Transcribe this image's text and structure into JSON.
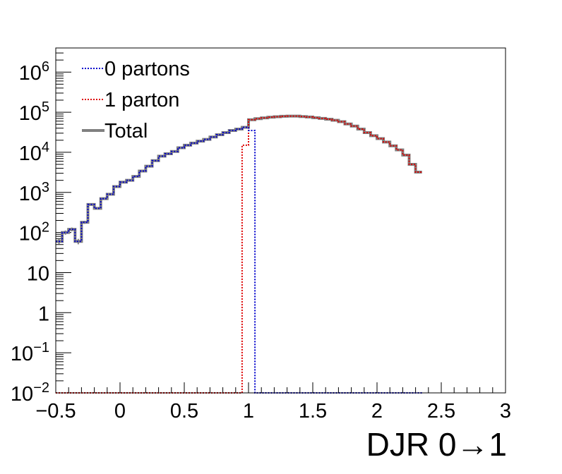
{
  "chart_data": {
    "type": "line",
    "xlabel": "DJR 0→1",
    "ylabel": "",
    "xlim": [
      -0.5,
      3.0
    ],
    "ylim": [
      0.01,
      4000000
    ],
    "log_y": true,
    "grid": false,
    "legend_position": "top-left",
    "x_tick_labels": [
      "−0.5",
      "0",
      "0.5",
      "1",
      "1.5",
      "2",
      "2.5",
      "3"
    ],
    "x_tick_values": [
      -0.5,
      0,
      0.5,
      1,
      1.5,
      2,
      2.5,
      3
    ],
    "y_tick_labels": [
      {
        "value": 0.01,
        "base": "10",
        "exp": "−2"
      },
      {
        "value": 0.1,
        "base": "10",
        "exp": "−1"
      },
      {
        "value": 1,
        "base": "1",
        "exp": ""
      },
      {
        "value": 10,
        "base": "10",
        "exp": ""
      },
      {
        "value": 100,
        "base": "10",
        "exp": "2"
      },
      {
        "value": 1000,
        "base": "10",
        "exp": "3"
      },
      {
        "value": 10000,
        "base": "10",
        "exp": "4"
      },
      {
        "value": 100000,
        "base": "10",
        "exp": "5"
      },
      {
        "value": 1000000,
        "base": "10",
        "exp": "6"
      }
    ],
    "bin_edges": [
      -0.5,
      -0.45,
      -0.4,
      -0.35,
      -0.3,
      -0.25,
      -0.2,
      -0.15,
      -0.1,
      -0.05,
      0.0,
      0.05,
      0.1,
      0.15,
      0.2,
      0.25,
      0.3,
      0.35,
      0.4,
      0.45,
      0.5,
      0.55,
      0.6,
      0.65,
      0.7,
      0.75,
      0.8,
      0.85,
      0.9,
      0.95,
      1.0,
      1.05,
      1.1,
      1.15,
      1.2,
      1.25,
      1.3,
      1.35,
      1.4,
      1.45,
      1.5,
      1.55,
      1.6,
      1.65,
      1.7,
      1.75,
      1.8,
      1.85,
      1.9,
      1.95,
      2.0,
      2.05,
      2.1,
      2.15,
      2.2,
      2.25,
      2.3,
      2.35,
      2.4,
      2.45,
      2.5,
      2.55,
      2.6,
      2.65,
      2.7,
      2.75,
      2.8,
      2.85,
      2.9,
      2.95,
      3.0
    ],
    "series": [
      {
        "name": "Total",
        "color": "#808080",
        "style": "solid",
        "values": [
          60,
          100,
          120,
          60,
          180,
          500,
          400,
          700,
          900,
          1400,
          1800,
          2000,
          2500,
          3400,
          4500,
          6200,
          8000,
          9200,
          10500,
          13000,
          15000,
          17000,
          19000,
          21000,
          24000,
          27500,
          31000,
          35000,
          38000,
          42000,
          65000,
          69000,
          72000,
          75000,
          77000,
          79000,
          80000,
          80000,
          78000,
          76000,
          73000,
          70000,
          67000,
          63000,
          58000,
          51000,
          45000,
          38000,
          31000,
          26000,
          22000,
          18000,
          14500,
          11500,
          8500,
          5000,
          3200
        ]
      },
      {
        "name": "0 partons",
        "color": "#0000cc",
        "style": "dotted",
        "values": [
          60,
          100,
          120,
          60,
          180,
          500,
          400,
          700,
          900,
          1400,
          1800,
          2000,
          2500,
          3400,
          4500,
          6200,
          8000,
          9200,
          10500,
          13000,
          15000,
          17000,
          19000,
          21000,
          24000,
          27500,
          31000,
          35000,
          38000,
          42000,
          35000,
          0,
          0,
          0,
          0,
          0,
          0,
          0,
          0,
          0,
          0,
          0,
          0,
          0,
          0,
          0,
          0,
          0,
          0,
          0,
          0,
          0,
          0,
          0,
          0,
          0,
          0
        ]
      },
      {
        "name": "1 parton",
        "color": "#dd0000",
        "style": "dotted",
        "values": [
          0,
          0,
          0,
          0,
          0,
          0,
          0,
          0,
          0,
          0,
          0,
          0,
          0,
          0,
          0,
          0,
          0,
          0,
          0,
          0,
          0,
          0,
          0,
          0,
          0,
          0,
          0,
          0,
          0,
          15000,
          65000,
          69000,
          72000,
          75000,
          77000,
          79000,
          80000,
          80000,
          78000,
          76000,
          73000,
          70000,
          67000,
          63000,
          58000,
          51000,
          45000,
          38000,
          31000,
          26000,
          22000,
          18000,
          14500,
          11500,
          8500,
          5000,
          3200
        ]
      }
    ],
    "legend": [
      {
        "label": "0 partons",
        "color": "#0000cc",
        "style": "dotted"
      },
      {
        "label": "1 parton",
        "color": "#dd0000",
        "style": "dotted"
      },
      {
        "label": "Total",
        "color": "#808080",
        "style": "solid"
      }
    ]
  }
}
